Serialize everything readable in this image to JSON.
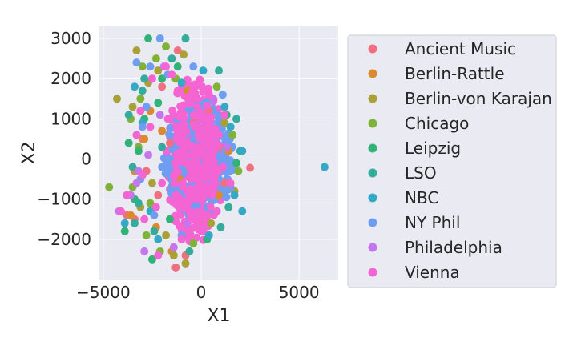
{
  "colors": {
    "plot_background": "#eaeaf2",
    "grid": "#ffffff",
    "legend_background": "#eaeaf2",
    "legend_border": "#cccccc"
  },
  "chart_data": {
    "type": "scatter",
    "title": "",
    "xlabel": "X1",
    "ylabel": "X2",
    "xlim": [
      -5200,
      7000
    ],
    "ylim": [
      -3000,
      3300
    ],
    "grid": true,
    "legend_position": "right, outside plot",
    "x_ticks": [
      {
        "value": -5000,
        "label": "−5000"
      },
      {
        "value": 0,
        "label": "0"
      },
      {
        "value": 5000,
        "label": "5000"
      }
    ],
    "y_ticks": [
      {
        "value": 3000,
        "label": "3000"
      },
      {
        "value": 2000,
        "label": "2000"
      },
      {
        "value": 1000,
        "label": "1000"
      },
      {
        "value": 0,
        "label": "0"
      },
      {
        "value": -1000,
        "label": "−1000"
      },
      {
        "value": -2000,
        "label": "−2000"
      }
    ],
    "series": [
      {
        "name": "Ancient Music",
        "color": "#f0707f",
        "points": [
          [
            2500,
            -220
          ],
          [
            -1200,
            2700
          ],
          [
            -1300,
            -2700
          ],
          [
            -3400,
            -1500
          ],
          [
            -3000,
            500
          ],
          [
            -800,
            -2400
          ],
          [
            400,
            1200
          ],
          [
            -1600,
            400
          ],
          [
            1200,
            -600
          ],
          [
            -400,
            900
          ],
          [
            -2200,
            -900
          ],
          [
            100,
            -1500
          ],
          [
            -2800,
            -300
          ],
          [
            900,
            300
          ],
          [
            -3800,
            -1400
          ],
          [
            -2000,
            1800
          ]
        ]
      },
      {
        "name": "Berlin-Rattle",
        "color": "#db8a2e",
        "points": [
          [
            -3600,
            -1400
          ],
          [
            -2900,
            500
          ],
          [
            -3400,
            -300
          ],
          [
            -2600,
            1200
          ],
          [
            -1500,
            -2300
          ],
          [
            -700,
            1700
          ],
          [
            900,
            -900
          ],
          [
            -2000,
            700
          ],
          [
            400,
            600
          ],
          [
            -1100,
            -500
          ],
          [
            1400,
            200
          ],
          [
            -2300,
            -1700
          ]
        ]
      },
      {
        "name": "Berlin-von Karajan",
        "color": "#a9a036",
        "points": [
          [
            -4300,
            1500
          ],
          [
            -3500,
            1300
          ],
          [
            -800,
            -2600
          ],
          [
            -1400,
            -2400
          ],
          [
            -3300,
            2700
          ],
          [
            -2700,
            1900
          ],
          [
            1700,
            -800
          ],
          [
            -3100,
            -1200
          ],
          [
            -2200,
            2200
          ],
          [
            -900,
            2600
          ],
          [
            1200,
            900
          ],
          [
            -1800,
            -1900
          ],
          [
            500,
            -1600
          ],
          [
            -2500,
            -600
          ]
        ]
      },
      {
        "name": "Chicago",
        "color": "#7fb236",
        "points": [
          [
            -4700,
            -700
          ],
          [
            -3000,
            2300
          ],
          [
            -3100,
            1500
          ],
          [
            -3600,
            1000
          ],
          [
            -2800,
            -1900
          ],
          [
            -2300,
            2500
          ],
          [
            -1800,
            2800
          ],
          [
            -3200,
            300
          ],
          [
            1600,
            600
          ],
          [
            -2600,
            -1100
          ],
          [
            -400,
            -2100
          ],
          [
            800,
            1800
          ],
          [
            -1300,
            2000
          ],
          [
            1900,
            -300
          ],
          [
            -2100,
            -2300
          ],
          [
            -3500,
            -700
          ]
        ]
      },
      {
        "name": "Leipzig",
        "color": "#31b277",
        "points": [
          [
            -2700,
            3000
          ],
          [
            -3200,
            200
          ],
          [
            -3900,
            -1800
          ],
          [
            -3700,
            400
          ],
          [
            -2500,
            -2500
          ],
          [
            -2000,
            2000
          ],
          [
            -3400,
            -1000
          ],
          [
            -1200,
            2300
          ],
          [
            1300,
            1100
          ],
          [
            -2900,
            1000
          ],
          [
            300,
            -2000
          ],
          [
            -1600,
            -1500
          ],
          [
            -2200,
            1400
          ],
          [
            1800,
            -100
          ],
          [
            -600,
            -1800
          ],
          [
            -3000,
            -400
          ]
        ]
      },
      {
        "name": "LSO",
        "color": "#33ac9c",
        "points": [
          [
            -3400,
            -1600
          ],
          [
            -3500,
            -200
          ],
          [
            -3700,
            1100
          ],
          [
            -2900,
            2000
          ],
          [
            -800,
            3000
          ],
          [
            1800,
            1000
          ],
          [
            -600,
            -2300
          ],
          [
            -3000,
            1700
          ],
          [
            -3200,
            -1100
          ],
          [
            1400,
            -1200
          ],
          [
            -2400,
            -1800
          ],
          [
            -1500,
            2500
          ],
          [
            900,
            2200
          ],
          [
            -2000,
            300
          ],
          [
            1000,
            -1700
          ],
          [
            2000,
            200
          ]
        ]
      },
      {
        "name": "NBC",
        "color": "#33a9c6",
        "points": [
          [
            6300,
            -200
          ],
          [
            2100,
            -1300
          ],
          [
            -3900,
            -1600
          ],
          [
            -3400,
            1800
          ],
          [
            1500,
            800
          ],
          [
            -2600,
            -1300
          ],
          [
            100,
            2200
          ],
          [
            1700,
            -900
          ],
          [
            -1000,
            1900
          ],
          [
            -3000,
            900
          ],
          [
            1200,
            1300
          ],
          [
            -2200,
            -2000
          ],
          [
            400,
            -1900
          ],
          [
            2100,
            200
          ]
        ]
      },
      {
        "name": "NY Phil",
        "color": "#6f9df2",
        "points": [
          [
            -2100,
            3000
          ],
          [
            -2600,
            2300
          ],
          [
            -3300,
            2400
          ],
          [
            -3000,
            800
          ],
          [
            -2400,
            -1400
          ],
          [
            -1000,
            -1900
          ],
          [
            1500,
            -700
          ],
          [
            -1700,
            2100
          ],
          [
            -400,
            2300
          ],
          [
            -3100,
            -500
          ],
          [
            1100,
            1600
          ],
          [
            -2800,
            1300
          ],
          [
            300,
            -1200
          ],
          [
            -1300,
            -900
          ],
          [
            800,
            400
          ],
          [
            -2000,
            -200
          ]
        ]
      },
      {
        "name": "Philadelphia",
        "color": "#c476ec",
        "points": [
          [
            -4200,
            -1300
          ],
          [
            -2900,
            -2300
          ],
          [
            -3300,
            -600
          ],
          [
            -3600,
            -900
          ],
          [
            -3200,
            -300
          ],
          [
            -1900,
            2300
          ],
          [
            -2500,
            2000
          ],
          [
            -1400,
            -2200
          ],
          [
            1300,
            300
          ],
          [
            -2100,
            1100
          ],
          [
            -700,
            -1600
          ],
          [
            600,
            1500
          ],
          [
            -2700,
            100
          ],
          [
            -1100,
            700
          ],
          [
            400,
            -500
          ]
        ]
      },
      {
        "name": "Vienna",
        "color": "#f564d3",
        "points": [
          [
            -4100,
            -1300
          ],
          [
            -3300,
            600
          ],
          [
            -3800,
            -900
          ],
          [
            -2900,
            -1500
          ],
          [
            -2200,
            -2400
          ],
          [
            -1500,
            2100
          ],
          [
            -1800,
            2300
          ],
          [
            -3100,
            1200
          ],
          [
            -2500,
            2000
          ],
          [
            1200,
            1100
          ],
          [
            1500,
            -600
          ],
          [
            800,
            -1300
          ],
          [
            -600,
            -1800
          ],
          [
            -1200,
            1700
          ],
          [
            -200,
            1300
          ],
          [
            300,
            -800
          ],
          [
            -800,
            400
          ],
          [
            600,
            200
          ],
          [
            -2000,
            -600
          ],
          [
            -2600,
            800
          ],
          [
            -1300,
            -1100
          ],
          [
            100,
            700
          ],
          [
            -400,
            -300
          ],
          [
            -1700,
            1000
          ],
          [
            900,
            600
          ],
          [
            -2300,
            -1200
          ],
          [
            -1000,
            -2000
          ],
          [
            -3000,
            -400
          ],
          [
            400,
            1600
          ],
          [
            1100,
            -200
          ]
        ]
      }
    ],
    "dense_core": [
      {
        "color": "#f564d3",
        "center": [
          -300,
          0
        ],
        "radius": [
          1500,
          2100
        ]
      },
      {
        "color": "#6f9df2",
        "center": [
          -100,
          0
        ],
        "radius": [
          1800,
          1500
        ]
      }
    ]
  }
}
